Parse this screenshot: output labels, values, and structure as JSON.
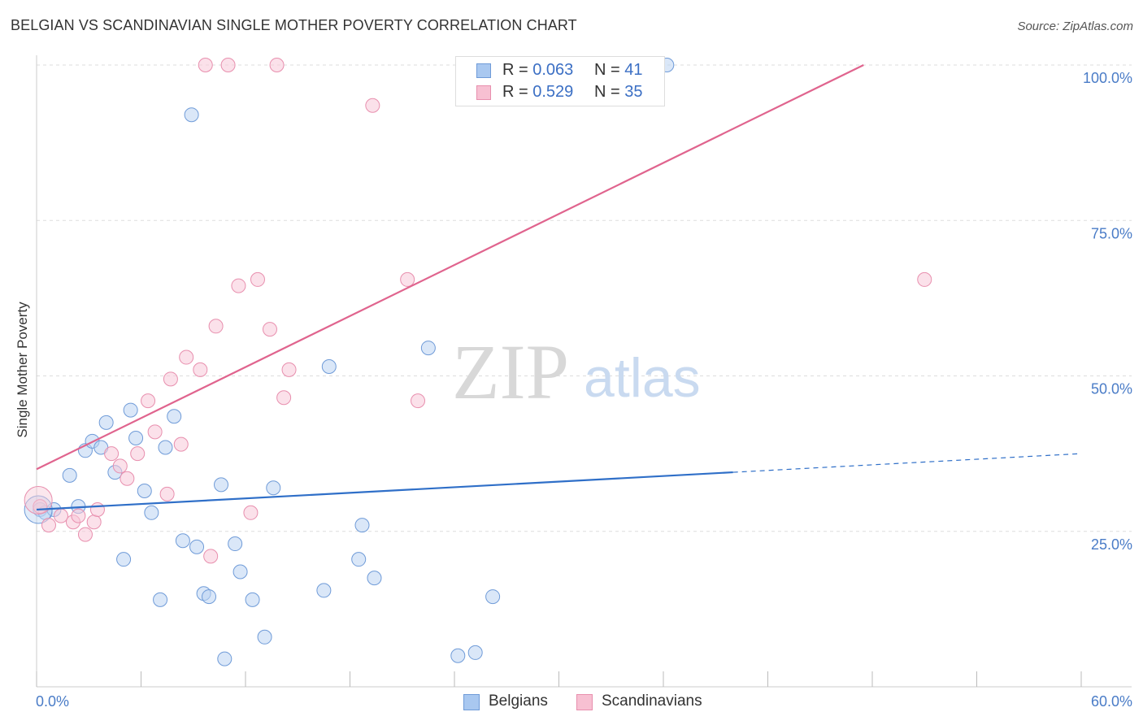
{
  "title": "BELGIAN VS SCANDINAVIAN SINGLE MOTHER POVERTY CORRELATION CHART",
  "source": "Source: ZipAtlas.com",
  "watermark": {
    "zip": "ZIP",
    "atlas": "atlas"
  },
  "legend": {
    "rows": [
      {
        "r_label": "R = ",
        "r_value": "0.063",
        "n_label": "N = ",
        "n_value": "41",
        "color": "#a9c8f0",
        "border": "#6f9bd8"
      },
      {
        "r_label": "R = ",
        "r_value": "0.529",
        "n_label": "N = ",
        "n_value": "35",
        "color": "#f7c0d2",
        "border": "#e88fae"
      }
    ]
  },
  "bottom_legend": [
    {
      "label": "Belgians",
      "color": "#a9c8f0",
      "border": "#6f9bd8"
    },
    {
      "label": "Scandinavians",
      "color": "#f7c0d2",
      "border": "#e88fae"
    }
  ],
  "chart_data": {
    "type": "scatter",
    "title": "BELGIAN VS SCANDINAVIAN SINGLE MOTHER POVERTY CORRELATION CHART",
    "xlabel": "",
    "ylabel": "Single Mother Poverty",
    "xlim": [
      0,
      60
    ],
    "ylim": [
      0,
      100
    ],
    "x_tick_labels": [
      "0.0%",
      "60.0%"
    ],
    "y_ticks": [
      25,
      50,
      75,
      100
    ],
    "y_tick_labels": [
      "25.0%",
      "50.0%",
      "75.0%",
      "100.0%"
    ],
    "grid": true,
    "legend_position": "top-center",
    "series": [
      {
        "name": "Belgians",
        "color": "#6f9bd8",
        "fill": "#bcd4f2",
        "points": [
          [
            0.2,
            28.5
          ],
          [
            0.5,
            28.0
          ],
          [
            1.0,
            28.5
          ],
          [
            1.9,
            34.0
          ],
          [
            2.4,
            29.0
          ],
          [
            2.8,
            38.0
          ],
          [
            3.2,
            39.5
          ],
          [
            3.7,
            38.5
          ],
          [
            4.0,
            42.5
          ],
          [
            4.5,
            34.5
          ],
          [
            5.0,
            20.5
          ],
          [
            5.4,
            44.5
          ],
          [
            5.7,
            40.0
          ],
          [
            6.2,
            31.5
          ],
          [
            6.6,
            28.0
          ],
          [
            7.1,
            14.0
          ],
          [
            7.4,
            38.5
          ],
          [
            7.9,
            43.5
          ],
          [
            8.4,
            23.5
          ],
          [
            8.9,
            92.0
          ],
          [
            9.2,
            22.5
          ],
          [
            9.6,
            15.0
          ],
          [
            9.9,
            14.5
          ],
          [
            10.6,
            32.5
          ],
          [
            10.8,
            4.5
          ],
          [
            11.4,
            23.0
          ],
          [
            11.7,
            18.5
          ],
          [
            12.4,
            14.0
          ],
          [
            13.1,
            8.0
          ],
          [
            13.6,
            32.0
          ],
          [
            16.5,
            15.5
          ],
          [
            16.8,
            51.5
          ],
          [
            18.7,
            26.0
          ],
          [
            18.5,
            20.5
          ],
          [
            19.4,
            17.5
          ],
          [
            22.5,
            54.5
          ],
          [
            24.2,
            5.0
          ],
          [
            25.2,
            5.5
          ],
          [
            26.2,
            14.5
          ],
          [
            36.2,
            100.0
          ],
          [
            0.1,
            28.5
          ]
        ],
        "trend": {
          "x": [
            0.0,
            40.0
          ],
          "y": [
            28.5,
            34.5
          ],
          "dashed_to": [
            60.0,
            37.5
          ]
        }
      },
      {
        "name": "Scandinavians",
        "color": "#e88fae",
        "fill": "#f7c9d8",
        "points": [
          [
            0.2,
            29.0
          ],
          [
            0.7,
            26.0
          ],
          [
            1.4,
            27.5
          ],
          [
            2.1,
            26.5
          ],
          [
            2.4,
            27.5
          ],
          [
            2.8,
            24.5
          ],
          [
            3.3,
            26.5
          ],
          [
            3.5,
            28.5
          ],
          [
            4.3,
            37.5
          ],
          [
            4.8,
            35.5
          ],
          [
            5.2,
            33.5
          ],
          [
            5.8,
            37.5
          ],
          [
            6.4,
            46.0
          ],
          [
            6.8,
            41.0
          ],
          [
            7.5,
            31.0
          ],
          [
            7.7,
            49.5
          ],
          [
            8.3,
            39.0
          ],
          [
            8.6,
            53.0
          ],
          [
            9.4,
            51.0
          ],
          [
            9.7,
            100.0
          ],
          [
            10.0,
            21.0
          ],
          [
            10.3,
            58.0
          ],
          [
            11.0,
            100.0
          ],
          [
            11.6,
            64.5
          ],
          [
            12.3,
            28.0
          ],
          [
            12.7,
            65.5
          ],
          [
            13.4,
            57.5
          ],
          [
            13.8,
            100.0
          ],
          [
            14.2,
            46.5
          ],
          [
            14.5,
            51.0
          ],
          [
            19.3,
            93.5
          ],
          [
            21.3,
            65.5
          ],
          [
            21.9,
            46.0
          ],
          [
            51.0,
            65.5
          ],
          [
            0.1,
            30.0
          ]
        ],
        "trend": {
          "x": [
            0.0,
            47.5
          ],
          "y": [
            35.0,
            100.0
          ]
        }
      }
    ]
  }
}
